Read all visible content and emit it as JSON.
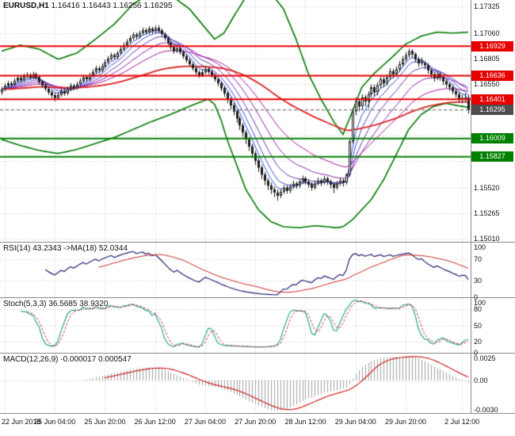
{
  "window": {
    "symbol": "EURUSD,H1",
    "ohlc": "1.16416 1.16443 1.16256 1.16295"
  },
  "panes": {
    "rsi": {
      "text": "RSI(14) 43.2343  ->MA(18) 52.0344"
    },
    "stoch": {
      "text": "Stoch(5,3,3) 36.5685 38.9320"
    },
    "macd": {
      "text": "MACD(12,26,9) -0.000017 0.000547"
    }
  },
  "price_axis": {
    "grid_labels": [
      "1.17325",
      "1.17060",
      "1.16805",
      "1.16550",
      "1.15520",
      "1.15265",
      "1.15010"
    ]
  },
  "colors": {
    "grid": "#c9c9c9",
    "candle": "#1a1a1a",
    "bull": "#ffffff",
    "bear": "#1a1a1a",
    "bollinger": "#007800",
    "resistance": "#e60000",
    "support": "#008000",
    "current": "#666666",
    "fan": [
      "#2255dd",
      "#4444cc",
      "#6633bb",
      "#8822aa",
      "#aa1199"
    ],
    "long_ma": "#dd2222",
    "rsi": "#202070",
    "rsi_ma": "#cc2020",
    "stoch_k": "#26a69a",
    "stoch_d": "#d32f2f",
    "macd_hist": "#a0a0a0",
    "macd_signal": "#cc2222"
  },
  "chart_data": {
    "type": "candlestick",
    "symbol": "EURUSD",
    "timeframe": "H1",
    "title": "EURUSD,H1 1.16416 1.16443 1.16256 1.16295",
    "price_range": [
      1.1498,
      1.1739
    ],
    "grid_prices": [
      1.17325,
      1.1706,
      1.16805,
      1.1655,
      1.16295,
      1.1604,
      1.15785,
      1.1552,
      1.15265,
      1.1501
    ],
    "x_labels": [
      {
        "text": "22 Jun 2018",
        "bar": 1
      },
      {
        "text": "25 Jun 04:00",
        "bar": 17
      },
      {
        "text": "25 Jun 20:00",
        "bar": 33
      },
      {
        "text": "26 Jun 12:00",
        "bar": 49
      },
      {
        "text": "27 Jun 04:00",
        "bar": 65
      },
      {
        "text": "27 Jun 20:00",
        "bar": 81
      },
      {
        "text": "28 Jun 12:00",
        "bar": 97
      },
      {
        "text": "29 Jun 04:00",
        "bar": 113
      },
      {
        "text": "29 Jun 20:00",
        "bar": 129
      },
      {
        "text": "2 Jul 12:00",
        "bar": 147
      }
    ],
    "levels": {
      "resistance": [
        1.16929,
        1.16636,
        1.16401
      ],
      "support": [
        1.16009,
        1.15827
      ],
      "current_price": 1.16295
    },
    "candles": [
      [
        1.1647,
        1.16525,
        1.16445,
        1.165
      ],
      [
        1.165,
        1.1656,
        1.1648,
        1.16535
      ],
      [
        1.16535,
        1.16585,
        1.16515,
        1.1656
      ],
      [
        1.1656,
        1.1658,
        1.1652,
        1.16545
      ],
      [
        1.16545,
        1.1661,
        1.1653,
        1.16585
      ],
      [
        1.16585,
        1.1664,
        1.16565,
        1.16615
      ],
      [
        1.16615,
        1.16635,
        1.1657,
        1.1659
      ],
      [
        1.1659,
        1.16655,
        1.16575,
        1.1663
      ],
      [
        1.1663,
        1.1667,
        1.1661,
        1.16645
      ],
      [
        1.16645,
        1.1666,
        1.16595,
        1.16615
      ],
      [
        1.16615,
        1.16675,
        1.166,
        1.1665
      ],
      [
        1.1665,
        1.16665,
        1.166,
        1.1662
      ],
      [
        1.1662,
        1.1664,
        1.1655,
        1.16575
      ],
      [
        1.16575,
        1.16595,
        1.16515,
        1.1654
      ],
      [
        1.1654,
        1.1656,
        1.1648,
        1.16505
      ],
      [
        1.16505,
        1.16525,
        1.16445,
        1.1647
      ],
      [
        1.1647,
        1.16495,
        1.16415,
        1.1644
      ],
      [
        1.1644,
        1.16465,
        1.1638,
        1.16415
      ],
      [
        1.16415,
        1.1647,
        1.16395,
        1.16445
      ],
      [
        1.16445,
        1.16505,
        1.16425,
        1.1648
      ],
      [
        1.1648,
        1.1651,
        1.16435,
        1.1646
      ],
      [
        1.1646,
        1.16525,
        1.1644,
        1.165
      ],
      [
        1.165,
        1.1656,
        1.1648,
        1.16535
      ],
      [
        1.16535,
        1.16555,
        1.1649,
        1.16515
      ],
      [
        1.16515,
        1.16575,
        1.16495,
        1.1655
      ],
      [
        1.1655,
        1.1661,
        1.1653,
        1.16585
      ],
      [
        1.16585,
        1.16645,
        1.16565,
        1.1662
      ],
      [
        1.1662,
        1.1664,
        1.16575,
        1.166
      ],
      [
        1.166,
        1.16665,
        1.1658,
        1.1664
      ],
      [
        1.1664,
        1.167,
        1.1662,
        1.16675
      ],
      [
        1.16675,
        1.16735,
        1.16655,
        1.1671
      ],
      [
        1.1671,
        1.1673,
        1.16665,
        1.1669
      ],
      [
        1.1669,
        1.16755,
        1.1667,
        1.1673
      ],
      [
        1.1673,
        1.16795,
        1.1671,
        1.1677
      ],
      [
        1.1677,
        1.1683,
        1.1675,
        1.16805
      ],
      [
        1.16805,
        1.16865,
        1.16785,
        1.1684
      ],
      [
        1.1684,
        1.1686,
        1.16795,
        1.1682
      ],
      [
        1.1682,
        1.16885,
        1.168,
        1.1686
      ],
      [
        1.1686,
        1.16925,
        1.1684,
        1.169
      ],
      [
        1.169,
        1.16965,
        1.1688,
        1.1694
      ],
      [
        1.1694,
        1.17,
        1.1692,
        1.16975
      ],
      [
        1.16975,
        1.17035,
        1.16955,
        1.1701
      ],
      [
        1.1701,
        1.1707,
        1.1699,
        1.17045
      ],
      [
        1.17045,
        1.17065,
        1.17,
        1.17025
      ],
      [
        1.17025,
        1.17085,
        1.17005,
        1.1706
      ],
      [
        1.1706,
        1.17115,
        1.1704,
        1.1709
      ],
      [
        1.1709,
        1.1711,
        1.17045,
        1.1707
      ],
      [
        1.1707,
        1.1713,
        1.1705,
        1.17105
      ],
      [
        1.17105,
        1.17125,
        1.17055,
        1.1708
      ],
      [
        1.1708,
        1.17135,
        1.1706,
        1.1711
      ],
      [
        1.1711,
        1.1714,
        1.1706,
        1.17085
      ],
      [
        1.17085,
        1.17105,
        1.17025,
        1.1705
      ],
      [
        1.1705,
        1.1707,
        1.16985,
        1.1701
      ],
      [
        1.1701,
        1.1703,
        1.1694,
        1.16965
      ],
      [
        1.16965,
        1.16985,
        1.16895,
        1.1692
      ],
      [
        1.1692,
        1.16945,
        1.16855,
        1.1688
      ],
      [
        1.1688,
        1.16935,
        1.1686,
        1.1691
      ],
      [
        1.1691,
        1.1693,
        1.16845,
        1.1687
      ],
      [
        1.1687,
        1.1689,
        1.16805,
        1.1683
      ],
      [
        1.1683,
        1.1685,
        1.16765,
        1.1679
      ],
      [
        1.1679,
        1.1681,
        1.16725,
        1.1675
      ],
      [
        1.1675,
        1.1677,
        1.16685,
        1.1671
      ],
      [
        1.1671,
        1.1673,
        1.16645,
        1.1667
      ],
      [
        1.1667,
        1.1669,
        1.16615,
        1.1664
      ],
      [
        1.1664,
        1.16695,
        1.1662,
        1.1667
      ],
      [
        1.1667,
        1.16725,
        1.1665,
        1.167
      ],
      [
        1.167,
        1.1672,
        1.1665,
        1.16675
      ],
      [
        1.16675,
        1.16695,
        1.16615,
        1.1664
      ],
      [
        1.1664,
        1.1666,
        1.16575,
        1.166
      ],
      [
        1.166,
        1.1662,
        1.1653,
        1.1656
      ],
      [
        1.1656,
        1.1658,
        1.1648,
        1.1651
      ],
      [
        1.1651,
        1.1653,
        1.16425,
        1.1646
      ],
      [
        1.1646,
        1.1648,
        1.1636,
        1.164
      ],
      [
        1.164,
        1.1642,
        1.163,
        1.1634
      ],
      [
        1.1634,
        1.16365,
        1.1624,
        1.1628
      ],
      [
        1.1628,
        1.163,
        1.16165,
        1.1621
      ],
      [
        1.1621,
        1.16235,
        1.16095,
        1.1614
      ],
      [
        1.1614,
        1.16165,
        1.16025,
        1.1607
      ],
      [
        1.1607,
        1.16095,
        1.15955,
        1.16
      ],
      [
        1.16,
        1.16025,
        1.15885,
        1.1593
      ],
      [
        1.1593,
        1.15955,
        1.15815,
        1.1586
      ],
      [
        1.1586,
        1.15885,
        1.15745,
        1.1579
      ],
      [
        1.1579,
        1.15815,
        1.15675,
        1.1572
      ],
      [
        1.1572,
        1.15745,
        1.15605,
        1.1565
      ],
      [
        1.1565,
        1.15675,
        1.15545,
        1.1559
      ],
      [
        1.1559,
        1.15615,
        1.15495,
        1.1554
      ],
      [
        1.1554,
        1.1557,
        1.15455,
        1.155
      ],
      [
        1.155,
        1.1553,
        1.15425,
        1.1547
      ],
      [
        1.1547,
        1.155,
        1.1539,
        1.1544
      ],
      [
        1.1544,
        1.15505,
        1.15415,
        1.1548
      ],
      [
        1.1548,
        1.15545,
        1.15455,
        1.1552
      ],
      [
        1.1552,
        1.15545,
        1.1546,
        1.1549
      ],
      [
        1.1549,
        1.15555,
        1.15465,
        1.1553
      ],
      [
        1.1553,
        1.1559,
        1.15505,
        1.1556
      ],
      [
        1.1556,
        1.1558,
        1.1551,
        1.1554
      ],
      [
        1.1554,
        1.15605,
        1.15515,
        1.1558
      ],
      [
        1.1558,
        1.1564,
        1.15555,
        1.1561
      ],
      [
        1.1561,
        1.1563,
        1.1555,
        1.1558
      ],
      [
        1.1558,
        1.156,
        1.1552,
        1.1555
      ],
      [
        1.1555,
        1.15575,
        1.1549,
        1.1552
      ],
      [
        1.1552,
        1.1559,
        1.155,
        1.1556
      ],
      [
        1.1556,
        1.1562,
        1.1554,
        1.1559
      ],
      [
        1.1559,
        1.1561,
        1.15535,
        1.1557
      ],
      [
        1.1557,
        1.15635,
        1.1555,
        1.1561
      ],
      [
        1.1561,
        1.1563,
        1.15545,
        1.1558
      ],
      [
        1.1558,
        1.156,
        1.1551,
        1.1555
      ],
      [
        1.1555,
        1.1557,
        1.15465,
        1.1552
      ],
      [
        1.1552,
        1.15585,
        1.155,
        1.1556
      ],
      [
        1.1556,
        1.15615,
        1.1554,
        1.1559
      ],
      [
        1.1559,
        1.1561,
        1.1553,
        1.1557
      ],
      [
        1.1557,
        1.15665,
        1.1555,
        1.1565
      ],
      [
        1.1565,
        1.16,
        1.1563,
        1.1598
      ],
      [
        1.1598,
        1.1631,
        1.1596,
        1.1628
      ],
      [
        1.1628,
        1.1642,
        1.1624,
        1.1638
      ],
      [
        1.1638,
        1.1641,
        1.1628,
        1.1633
      ],
      [
        1.1633,
        1.1645,
        1.163,
        1.1642
      ],
      [
        1.1642,
        1.16445,
        1.1633,
        1.1638
      ],
      [
        1.1638,
        1.1648,
        1.1631,
        1.1645
      ],
      [
        1.1645,
        1.1655,
        1.1642,
        1.1652
      ],
      [
        1.1652,
        1.16545,
        1.1643,
        1.1647
      ],
      [
        1.1647,
        1.1657,
        1.1644,
        1.1654
      ],
      [
        1.1654,
        1.1663,
        1.1651,
        1.166
      ],
      [
        1.166,
        1.16625,
        1.1652,
        1.1656
      ],
      [
        1.1656,
        1.1665,
        1.16535,
        1.1662
      ],
      [
        1.1662,
        1.1671,
        1.1659,
        1.1668
      ],
      [
        1.1668,
        1.16705,
        1.1661,
        1.1665
      ],
      [
        1.1665,
        1.1673,
        1.16625,
        1.167
      ],
      [
        1.167,
        1.1678,
        1.16675,
        1.1675
      ],
      [
        1.1675,
        1.1683,
        1.16725,
        1.168
      ],
      [
        1.168,
        1.1687,
        1.16775,
        1.1684
      ],
      [
        1.1684,
        1.16905,
        1.16815,
        1.1688
      ],
      [
        1.1688,
        1.169,
        1.1682,
        1.1685
      ],
      [
        1.1685,
        1.1687,
        1.1677,
        1.168
      ],
      [
        1.168,
        1.16825,
        1.16725,
        1.1676
      ],
      [
        1.1676,
        1.16815,
        1.16735,
        1.1679
      ],
      [
        1.1676,
        1.1678,
        1.167,
        1.1674
      ],
      [
        1.1674,
        1.1676,
        1.16655,
        1.1669
      ],
      [
        1.1669,
        1.1671,
        1.16615,
        1.1665
      ],
      [
        1.1665,
        1.1667,
        1.16575,
        1.1661
      ],
      [
        1.1661,
        1.1668,
        1.1659,
        1.1665
      ],
      [
        1.1665,
        1.1667,
        1.16585,
        1.1662
      ],
      [
        1.1662,
        1.1664,
        1.16545,
        1.1658
      ],
      [
        1.1658,
        1.166,
        1.16515,
        1.1655
      ],
      [
        1.1655,
        1.1657,
        1.16485,
        1.1652
      ],
      [
        1.1652,
        1.16545,
        1.1645,
        1.1648
      ],
      [
        1.1648,
        1.1651,
        1.16415,
        1.1645
      ],
      [
        1.1645,
        1.16475,
        1.1637,
        1.164
      ],
      [
        1.164,
        1.16445,
        1.1636,
        1.16415
      ],
      [
        1.16415,
        1.1646,
        1.1638,
        1.16416
      ],
      [
        1.16416,
        1.16443,
        1.16256,
        1.16295
      ]
    ],
    "overlays": {
      "bollinger_upper": [
        [
          0,
          1.1688
        ],
        [
          6,
          1.1694
        ],
        [
          12,
          1.169
        ],
        [
          18,
          1.168
        ],
        [
          24,
          1.1686
        ],
        [
          30,
          1.17
        ],
        [
          36,
          1.1715
        ],
        [
          42,
          1.1735
        ],
        [
          48,
          1.1746
        ],
        [
          54,
          1.1744
        ],
        [
          60,
          1.173
        ],
        [
          64,
          1.1715
        ],
        [
          68,
          1.17
        ],
        [
          71,
          1.1706
        ],
        [
          74,
          1.1722
        ],
        [
          78,
          1.1742
        ],
        [
          82,
          1.1752
        ],
        [
          86,
          1.1746
        ],
        [
          90,
          1.173
        ],
        [
          94,
          1.17
        ],
        [
          98,
          1.1665
        ],
        [
          102,
          1.164
        ],
        [
          106,
          1.1618
        ],
        [
          109,
          1.1605
        ],
        [
          112,
          1.1628
        ],
        [
          115,
          1.1652
        ],
        [
          119,
          1.1666
        ],
        [
          124,
          1.168
        ],
        [
          129,
          1.1695
        ],
        [
          134,
          1.1703
        ],
        [
          139,
          1.1707
        ],
        [
          144,
          1.1706
        ],
        [
          149,
          1.1707
        ]
      ],
      "bollinger_lower": [
        [
          0,
          1.16
        ],
        [
          6,
          1.1594
        ],
        [
          12,
          1.1589
        ],
        [
          18,
          1.1586
        ],
        [
          24,
          1.159
        ],
        [
          30,
          1.1596
        ],
        [
          36,
          1.1602
        ],
        [
          42,
          1.161
        ],
        [
          48,
          1.1618
        ],
        [
          54,
          1.1625
        ],
        [
          60,
          1.1633
        ],
        [
          64,
          1.1638
        ],
        [
          66,
          1.164
        ],
        [
          68,
          1.1635
        ],
        [
          70,
          1.162
        ],
        [
          72,
          1.16
        ],
        [
          75,
          1.1575
        ],
        [
          78,
          1.155
        ],
        [
          82,
          1.153
        ],
        [
          86,
          1.1518
        ],
        [
          90,
          1.1513
        ],
        [
          95,
          1.1512
        ],
        [
          100,
          1.1514
        ],
        [
          104,
          1.1513
        ],
        [
          107,
          1.1512
        ],
        [
          109,
          1.1513
        ],
        [
          112,
          1.152
        ],
        [
          115,
          1.153
        ],
        [
          118,
          1.154
        ],
        [
          122,
          1.156
        ],
        [
          126,
          1.1585
        ],
        [
          130,
          1.161
        ],
        [
          134,
          1.1625
        ],
        [
          138,
          1.1633
        ],
        [
          142,
          1.1636
        ],
        [
          145,
          1.1634
        ],
        [
          149,
          1.1632
        ]
      ],
      "ema_fan_periods": [
        5,
        8,
        13,
        21,
        34
      ],
      "long_ma_period": 89
    },
    "indicators": {
      "rsi": {
        "period": 14,
        "ma_period": 18,
        "range": [
          0,
          100
        ],
        "levels": [
          70,
          30
        ],
        "axis_labels": [
          100,
          70,
          30,
          0
        ]
      },
      "stoch": {
        "k": 5,
        "d": 3,
        "slowing": 3,
        "range": [
          0,
          100
        ],
        "levels": [
          80,
          50,
          20
        ],
        "axis_labels": [
          100,
          80,
          50,
          20,
          0
        ]
      },
      "macd": {
        "fast": 12,
        "slow": 26,
        "signal": 9,
        "range": [
          -0.0033,
          0.0027
        ],
        "axis_labels": [
          "0.0025",
          "0.00",
          "-0.0030"
        ]
      }
    }
  }
}
